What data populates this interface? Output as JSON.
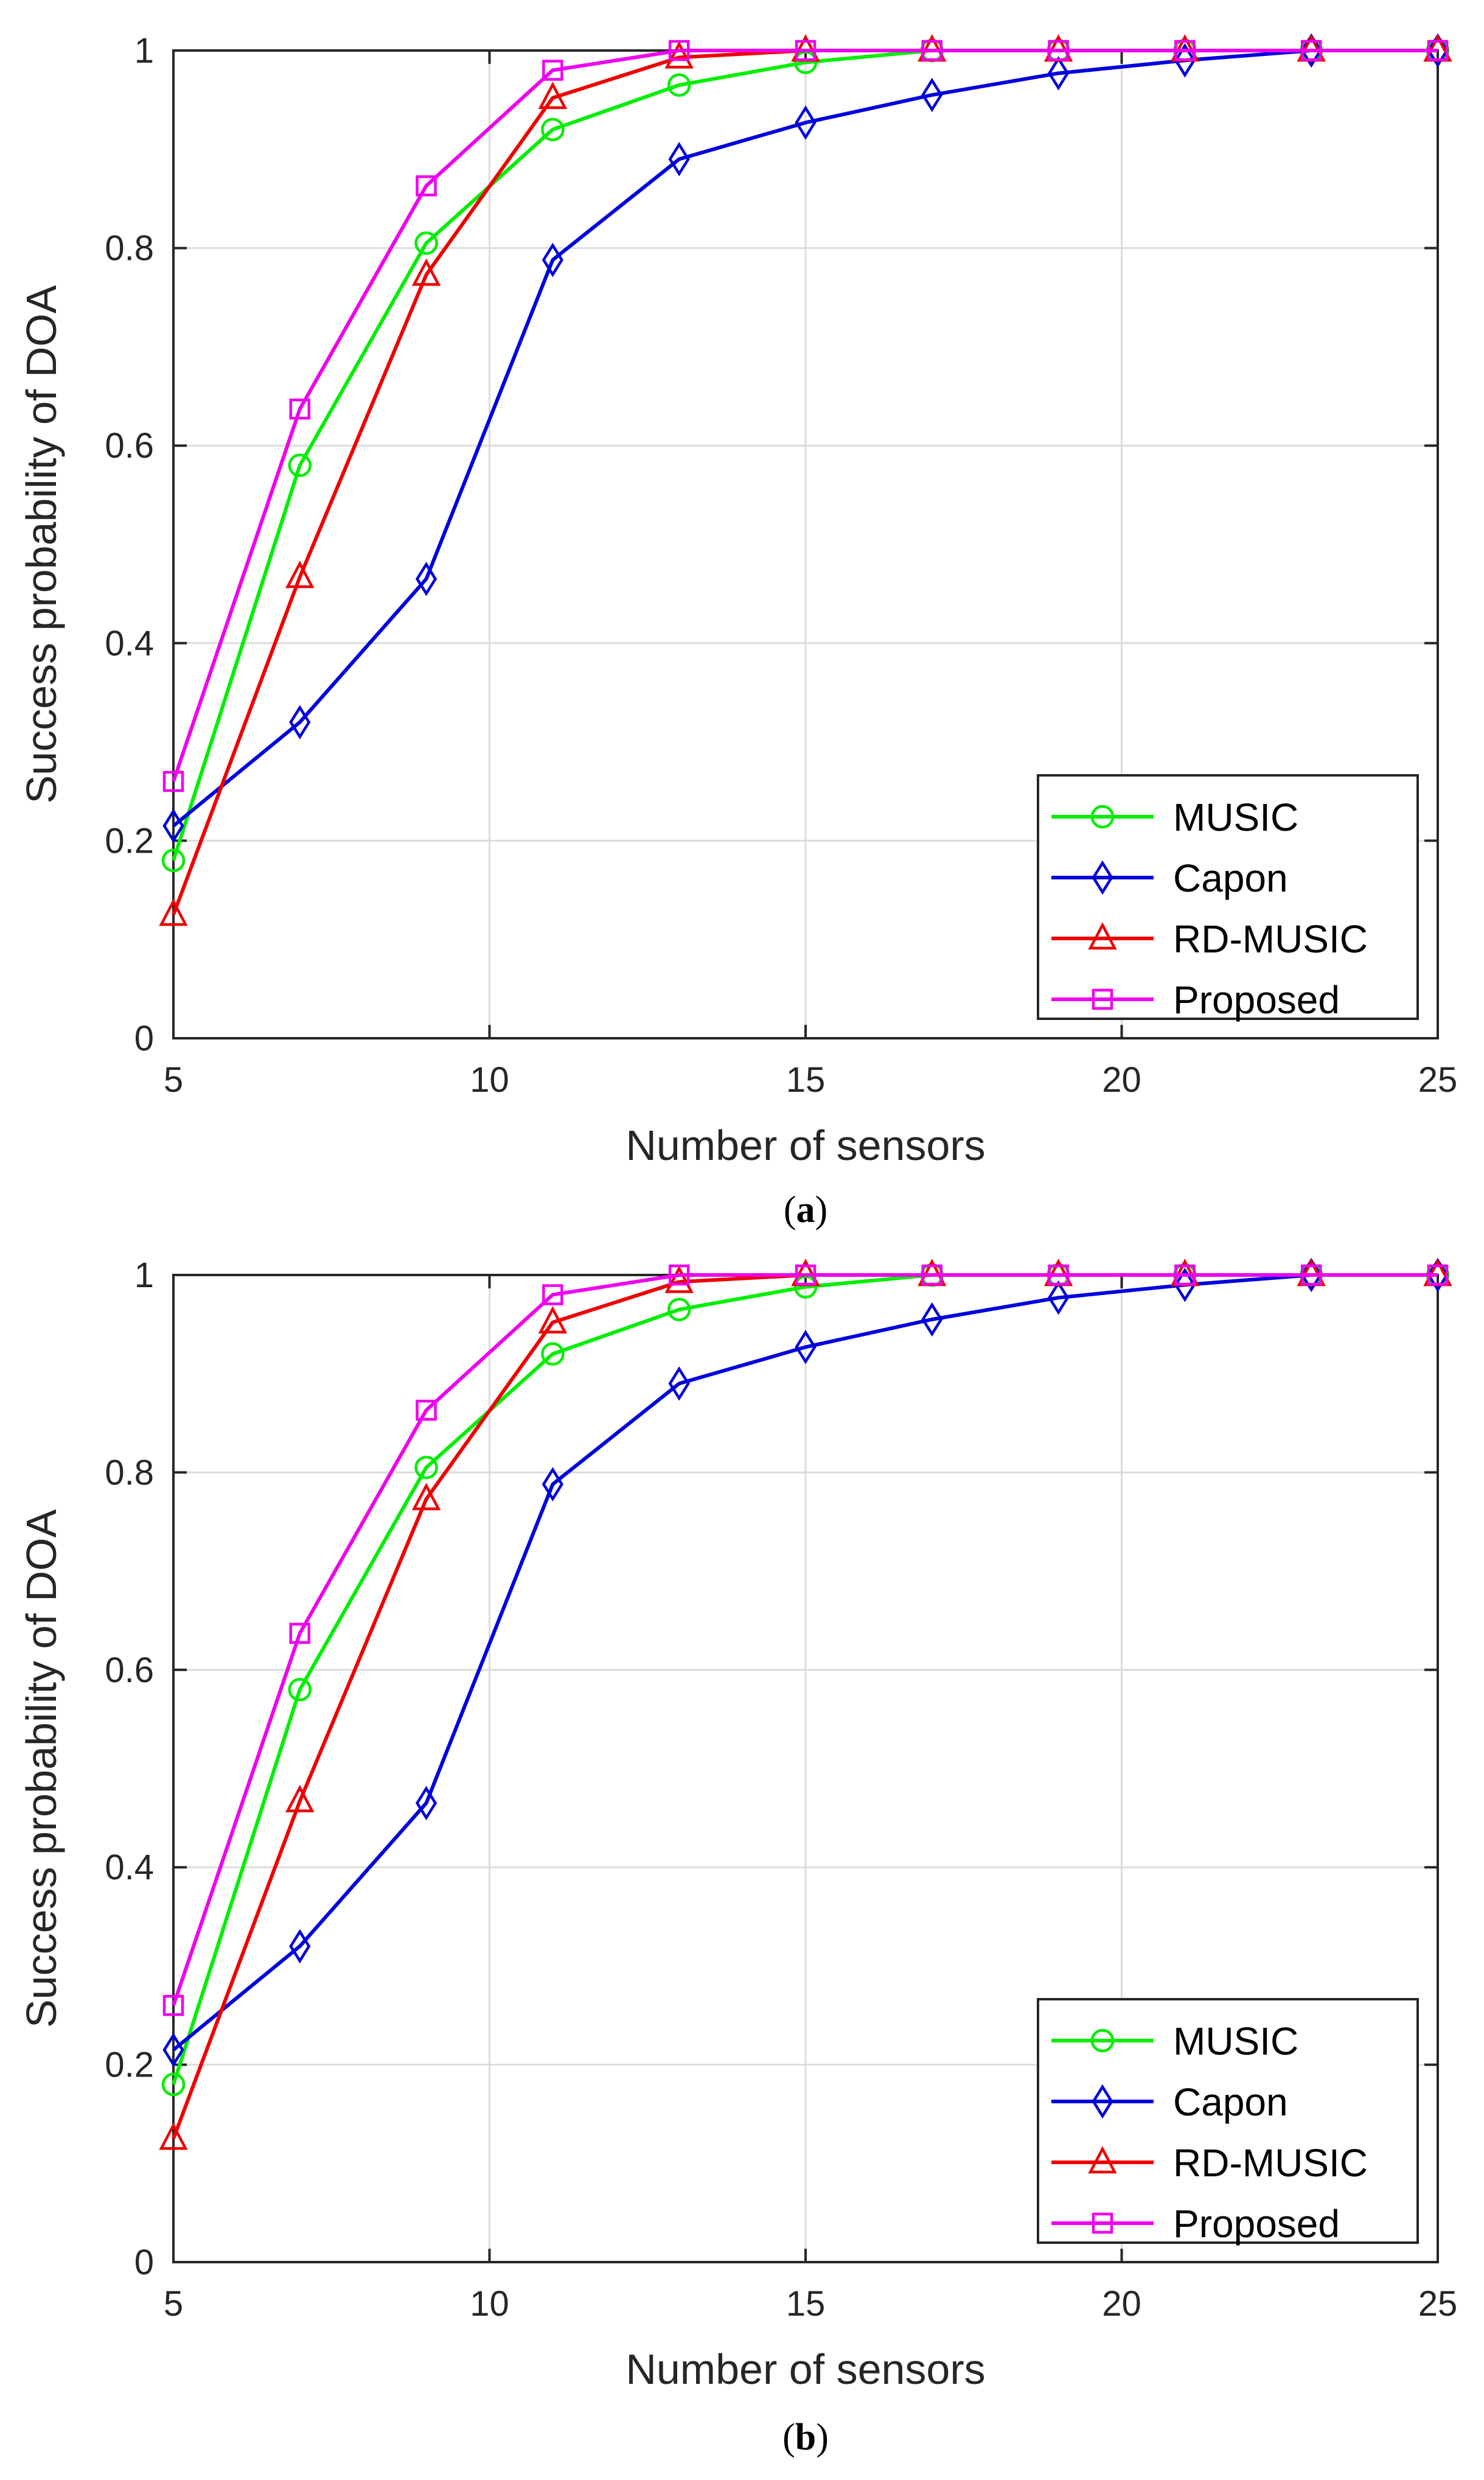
{
  "chart_data": [
    {
      "type": "line",
      "caption_letter": "a",
      "xlabel": "Number of sensors",
      "ylabel": "Success probability of DOA",
      "xlim": [
        5,
        25
      ],
      "ylim": [
        0,
        1
      ],
      "x_ticks": [
        5,
        10,
        15,
        20,
        25
      ],
      "y_ticks": [
        0,
        0.2,
        0.4,
        0.6,
        0.8,
        1
      ],
      "x_tick_labels": [
        "5",
        "10",
        "15",
        "20",
        "25"
      ],
      "y_tick_labels": [
        "0",
        "0.2",
        "0.4",
        "0.6",
        "0.8",
        "1"
      ],
      "grid": true,
      "legend_position": "bottom-right",
      "x": [
        5,
        7,
        9,
        11,
        13,
        15,
        17,
        19,
        21,
        23,
        25
      ],
      "series": [
        {
          "name": "MUSIC",
          "color": "#00ee00",
          "marker": "circle",
          "values": [
            0.18,
            0.58,
            0.805,
            0.92,
            0.965,
            0.988,
            1.0,
            1.0,
            1.0,
            1.0,
            1.0
          ]
        },
        {
          "name": "Capon",
          "color": "#0000dd",
          "marker": "diamond",
          "values": [
            0.215,
            0.32,
            0.465,
            0.788,
            0.89,
            0.927,
            0.955,
            0.977,
            0.99,
            1.0,
            1.0
          ]
        },
        {
          "name": "RD-MUSIC",
          "color": "#ee0000",
          "marker": "triangle",
          "values": [
            0.125,
            0.467,
            0.773,
            0.952,
            0.993,
            1.0,
            1.0,
            1.0,
            1.0,
            1.0,
            1.0
          ]
        },
        {
          "name": "Proposed",
          "color": "#ee00ee",
          "marker": "square",
          "values": [
            0.26,
            0.637,
            0.863,
            0.98,
            1.0,
            1.0,
            1.0,
            1.0,
            1.0,
            1.0,
            1.0
          ]
        }
      ]
    },
    {
      "type": "line",
      "caption_letter": "b",
      "xlabel": "Number of sensors",
      "ylabel": "Success probability of DOA",
      "xlim": [
        5,
        25
      ],
      "ylim": [
        0,
        1
      ],
      "x_ticks": [
        5,
        10,
        15,
        20,
        25
      ],
      "y_ticks": [
        0,
        0.2,
        0.4,
        0.6,
        0.8,
        1
      ],
      "x_tick_labels": [
        "5",
        "10",
        "15",
        "20",
        "25"
      ],
      "y_tick_labels": [
        "0",
        "0.2",
        "0.4",
        "0.6",
        "0.8",
        "1"
      ],
      "grid": true,
      "legend_position": "bottom-right",
      "x": [
        5,
        7,
        9,
        11,
        13,
        15,
        17,
        19,
        21,
        23,
        25
      ],
      "series": [
        {
          "name": "MUSIC",
          "color": "#00ee00",
          "marker": "circle",
          "values": [
            0.18,
            0.58,
            0.805,
            0.92,
            0.965,
            0.988,
            1.0,
            1.0,
            1.0,
            1.0,
            1.0
          ]
        },
        {
          "name": "Capon",
          "color": "#0000dd",
          "marker": "diamond",
          "values": [
            0.215,
            0.32,
            0.465,
            0.788,
            0.89,
            0.927,
            0.955,
            0.977,
            0.99,
            1.0,
            1.0
          ]
        },
        {
          "name": "RD-MUSIC",
          "color": "#ee0000",
          "marker": "triangle",
          "values": [
            0.125,
            0.467,
            0.773,
            0.952,
            0.993,
            1.0,
            1.0,
            1.0,
            1.0,
            1.0,
            1.0
          ]
        },
        {
          "name": "Proposed",
          "color": "#ee00ee",
          "marker": "square",
          "values": [
            0.26,
            0.637,
            0.863,
            0.98,
            1.0,
            1.0,
            1.0,
            1.0,
            1.0,
            1.0,
            1.0
          ]
        }
      ]
    }
  ]
}
